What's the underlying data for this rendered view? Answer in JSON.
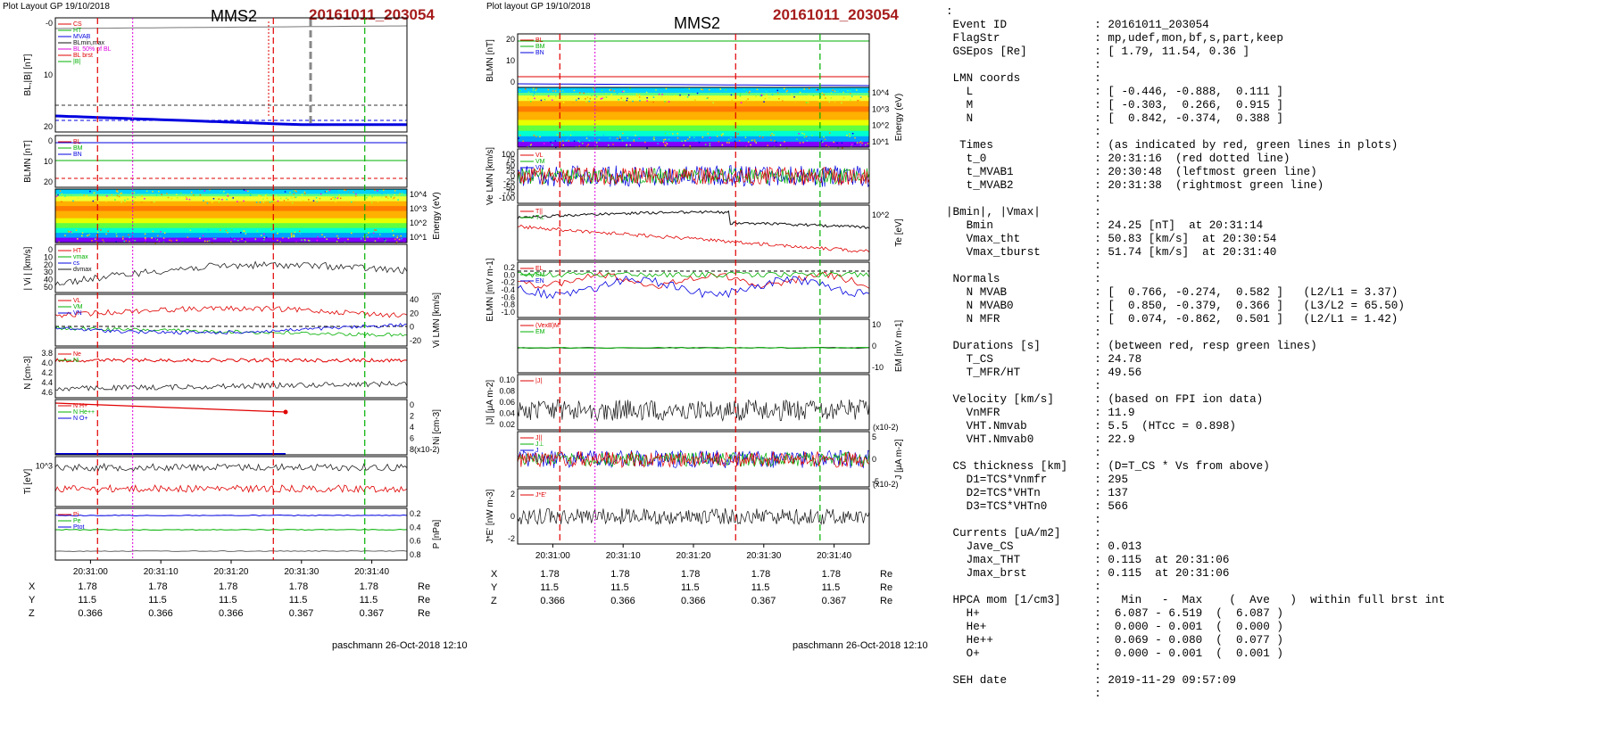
{
  "header": {
    "left_caption": "Plot Layout GP 19/10/2018",
    "right_caption": "Plot layout GP 19/10/2018",
    "spacecraft": "MMS2",
    "event": "20161011_203054"
  },
  "footer": {
    "left_signature": "paschmann 26-Oct-2018 12:10",
    "right_signature": "paschmann 26-Oct-2018 12:10"
  },
  "time_ticks": [
    "20:31:00",
    "20:31:10",
    "20:31:20",
    "20:31:30",
    "20:31:40"
  ],
  "coords": {
    "rows": [
      {
        "label": "X",
        "values": [
          "1.78",
          "1.78",
          "1.78",
          "1.78",
          "1.78"
        ],
        "unit": "Re"
      },
      {
        "label": "Y",
        "values": [
          "11.5",
          "11.5",
          "11.5",
          "11.5",
          "11.5"
        ],
        "unit": "Re"
      },
      {
        "label": "Z",
        "values": [
          "0.366",
          "0.366",
          "0.366",
          "0.367",
          "0.367"
        ],
        "unit": "Re"
      }
    ]
  },
  "colors": {
    "red": "#e00000",
    "green": "#00b000",
    "blue": "#0000e0",
    "magenta": "#dd00dd",
    "black": "#111111",
    "title_red": "#a61c1c"
  },
  "chart_data": [
    {
      "type": "line",
      "panel": "left",
      "x_range": [
        "20:30:55",
        "20:31:45"
      ],
      "markers": {
        "red_dashed": [
          "20:31:01",
          "20:31:26"
        ],
        "green_dashed": [
          "20:31:39"
        ],
        "magenta_dotted": [
          "20:31:06"
        ],
        "red_dotted": [
          "20:31:16"
        ]
      },
      "panels": [
        {
          "ylabel": "BL,|B| [nT]",
          "ylim": [
            -10,
            28
          ],
          "ticks": [
            "-0",
            "10",
            "20"
          ],
          "legend": [
            "CS",
            "HT",
            "MVAB",
            "BLmin,max",
            "BL 50% of BL",
            "BL brst",
            "|B|"
          ],
          "series": {
            "B_total": 25.5,
            "BL_start": -3,
            "BL_end": -8
          }
        },
        {
          "ylabel": "BLMN [nT]",
          "ylim": [
            -5,
            28
          ],
          "ticks": [
            "0",
            "10",
            "20"
          ],
          "legend": [
            "BL",
            "BM",
            "BN"
          ],
          "series": {
            "BL": 24,
            "BM": 14,
            "BN": 0
          }
        },
        {
          "ylabel": "Energy (eV)",
          "type": "heatmap",
          "ticks": [
            "10^4",
            "10^3",
            "10^2",
            "10^1"
          ]
        },
        {
          "ylabel": "| Vi | [km/s]",
          "ylim": [
            0,
            55
          ],
          "ticks": [
            "0",
            "10",
            "20",
            "30",
            "40",
            "50"
          ],
          "legend": [
            "HT",
            "vmax",
            "cs",
            "dvmax"
          ]
        },
        {
          "ylabel": "Vi LMN [km/s]",
          "ylim": [
            -30,
            45
          ],
          "ticks": [
            "40",
            "20",
            "0",
            "-20"
          ],
          "legend": [
            "VL",
            "VM",
            "VN"
          ]
        },
        {
          "ylabel": "N [cm-3]",
          "ylim": [
            3.75,
            4.65
          ],
          "ticks": [
            "3.8",
            "4.0",
            "4.2",
            "4.4",
            "4.6"
          ],
          "legend": [
            "Ne",
            "Ni"
          ]
        },
        {
          "ylabel": "Ni [cm-3]",
          "ylim": [
            0,
            8
          ],
          "ticks": [
            "0",
            "2",
            "4",
            "6",
            "8(x10-2)"
          ],
          "legend": [
            "N H+",
            "N He++",
            "N O+"
          ]
        },
        {
          "ylabel": "Ti [eV]",
          "ticks": [
            "10^3"
          ]
        },
        {
          "ylabel": "P [nPa]",
          "ylim": [
            0.15,
            0.85
          ],
          "ticks": [
            "0.2",
            "0.4",
            "0.6",
            "0.8"
          ],
          "legend": [
            "Pi",
            "Pe",
            "Ptot"
          ]
        }
      ]
    },
    {
      "type": "line",
      "panel": "right",
      "x_range": [
        "20:30:55",
        "20:31:45"
      ],
      "markers": {
        "red_dashed": [
          "20:31:01",
          "20:31:26"
        ],
        "green_dashed": [
          "20:31:38"
        ],
        "magenta_dotted": [
          "20:31:06"
        ]
      },
      "panels": [
        {
          "ylabel": "BLMN [nT]",
          "ylim": [
            -5,
            28
          ],
          "ticks": [
            "20",
            "10",
            "0"
          ],
          "legend": [
            "BL",
            "BM",
            "BN"
          ]
        },
        {
          "ylabel": "Energy (eV)",
          "type": "heatmap",
          "ticks": [
            "10^4",
            "10^3",
            "10^2",
            "10^1"
          ]
        },
        {
          "ylabel": "Ve LMN [km/s]",
          "ylim": [
            -120,
            120
          ],
          "ticks": [
            "100",
            "75",
            "50",
            "25",
            "0",
            "-25",
            "-50",
            "-75",
            "-100"
          ],
          "legend": [
            "VL",
            "VM",
            "VN"
          ]
        },
        {
          "ylabel": "Te [eV]",
          "ticks": [
            "10^2"
          ],
          "legend": [
            "T||",
            "T⊥"
          ]
        },
        {
          "ylabel": "ELMN [mV m-1]",
          "ylim": [
            -1.1,
            0.25
          ],
          "ticks": [
            "0.2",
            "0.0",
            "-0.2",
            "-0.4",
            "-0.6",
            "-0.8",
            "-1.0"
          ],
          "legend": [
            "EL",
            "EM",
            "EN"
          ]
        },
        {
          "ylabel": "EM [mV m-1]",
          "ylim": [
            -15,
            15
          ],
          "ticks": [
            "10",
            "0",
            "-10"
          ],
          "legend": [
            "(VexB)M",
            "EM"
          ]
        },
        {
          "ylabel": "|J| [μA m-2]",
          "ylim": [
            0.01,
            0.11
          ],
          "ticks": [
            "0.10",
            "0.08",
            "0.06",
            "0.04",
            "0.02"
          ],
          "legend": [
            "|J|"
          ]
        },
        {
          "ylabel": "J [μA m-2]",
          "ylim": [
            -7,
            7
          ],
          "ticks": [
            "5",
            "0",
            "-5"
          ],
          "scale_note": "(x10-2)",
          "legend": [
            "J||",
            "J⊥",
            "J"
          ]
        },
        {
          "ylabel": "J*E' [nW m-3]",
          "ylim": [
            -3,
            3
          ],
          "ticks": [
            "2",
            "0",
            "-2"
          ],
          "scale_note": "(x10-2)",
          "legend": [
            "J*E'"
          ]
        }
      ]
    }
  ],
  "info": {
    "lines": [
      ":",
      " Event ID             : 20161011_203054",
      " FlagStr              : mp,udef,mon,bf,s,part,keep",
      " GSEpos [Re]          : [ 1.79, 11.54, 0.36 ]",
      "                      :",
      " LMN coords           :",
      "   L                  : [ -0.446, -0.888,  0.111 ]",
      "   M                  : [ -0.303,  0.266,  0.915 ]",
      "   N                  : [  0.842, -0.374,  0.388 ]",
      "                      :",
      "  Times               : (as indicated by red, green lines in plots)",
      "   t_0                : 20:31:16  (red dotted line)",
      "   t_MVAB1            : 20:30:48  (leftmost green line)",
      "   t_MVAB2            : 20:31:38  (rightmost green line)",
      "                      :",
      "|Bmin|, |Vmax|        :",
      "   Bmin               : 24.25 [nT]  at 20:31:14",
      "   Vmax_tht           : 50.83 [km/s]  at 20:30:54",
      "   Vmax_tburst        : 51.74 [km/s]  at 20:31:40",
      "                      :",
      " Normals              :",
      "   N MVAB             : [  0.766, -0.274,  0.582 ]   (L2/L1 = 3.37)",
      "   N MVAB0            : [  0.850, -0.379,  0.366 ]   (L3/L2 = 65.50)",
      "   N MFR              : [  0.074, -0.862,  0.501 ]   (L2/L1 = 1.42)",
      "                      :",
      " Durations [s]        : (between red, resp green lines)",
      "   T_CS               : 24.78",
      "   T_MFR/HT           : 49.56",
      "                      :",
      " Velocity [km/s]      : (based on FPI ion data)",
      "   VnMFR              : 11.9",
      "   VHT.Nmvab          : 5.5  (HTcc = 0.898)",
      "   VHT.Nmvab0         : 22.9",
      "                      :",
      " CS thickness [km]    : (D=T_CS * Vs from above)",
      "   D1=TCS*Vnmfr       : 295",
      "   D2=TCS*VHTn        : 137",
      "   D3=TCS*VHTn0       : 566",
      "                      :",
      " Currents [uA/m2]     :",
      "   Jave_CS            : 0.013",
      "   Jmax_THT           : 0.115  at 20:31:06",
      "   Jmax_brst          : 0.115  at 20:31:06",
      "                      :",
      " HPCA mom [1/cm3]     :   Min   -  Max    (  Ave   )  within full brst int",
      "   H+                 :  6.087 - 6.519  (  6.087 )",
      "   He+                :  0.000 - 0.001  (  0.000 )",
      "   He++               :  0.069 - 0.080  (  0.077 )",
      "   O+                 :  0.000 - 0.001  (  0.001 )",
      "                      :",
      " SEH date             : 2019-11-29 09:57:09",
      "                      :"
    ]
  }
}
